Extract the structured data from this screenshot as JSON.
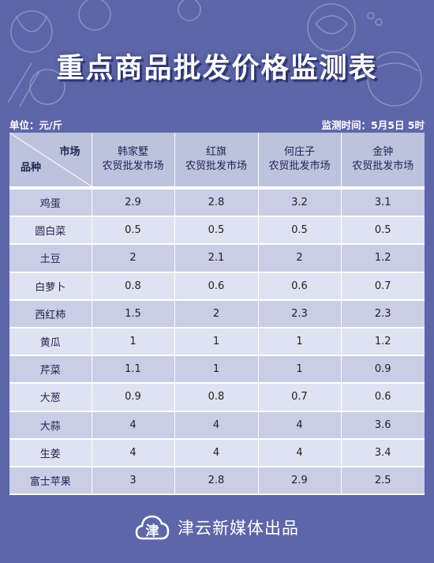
{
  "header": {
    "title": "重点商品批发价格监测表",
    "unit": "单位：元/斤",
    "time": "监测时间：5月5日 5时"
  },
  "table": {
    "corner_market": "市场",
    "corner_item": "品种",
    "columns": [
      {
        "line1": "韩家墅",
        "line2": "农贸批发市场"
      },
      {
        "line1": "红旗",
        "line2": "农贸批发市场"
      },
      {
        "line1": "何庄子",
        "line2": "农贸批发市场"
      },
      {
        "line1": "金钟",
        "line2": "农贸批发市场"
      }
    ],
    "rows": [
      {
        "name": "鸡蛋",
        "values": [
          "2.9",
          "2.8",
          "3.2",
          "3.1"
        ]
      },
      {
        "name": "圆白菜",
        "values": [
          "0.5",
          "0.5",
          "0.5",
          "0.5"
        ]
      },
      {
        "name": "土豆",
        "values": [
          "2",
          "2.1",
          "2",
          "1.2"
        ]
      },
      {
        "name": "白萝卜",
        "values": [
          "0.8",
          "0.6",
          "0.6",
          "0.7"
        ]
      },
      {
        "name": "西红柿",
        "values": [
          "1.5",
          "2",
          "2.3",
          "2.3"
        ]
      },
      {
        "name": "黄瓜",
        "values": [
          "1",
          "1",
          "1",
          "1.2"
        ]
      },
      {
        "name": "芹菜",
        "values": [
          "1.1",
          "1",
          "1",
          "0.9"
        ]
      },
      {
        "name": "大葱",
        "values": [
          "0.9",
          "0.8",
          "0.7",
          "0.6"
        ]
      },
      {
        "name": "大蒜",
        "values": [
          "4",
          "4",
          "4",
          "3.6"
        ]
      },
      {
        "name": "生姜",
        "values": [
          "4",
          "4",
          "4",
          "3.4"
        ]
      },
      {
        "name": "富士苹果",
        "values": [
          "3",
          "2.8",
          "2.9",
          "2.5"
        ]
      }
    ]
  },
  "footer": {
    "logo_char": "津",
    "text": "津云新媒体出品"
  }
}
